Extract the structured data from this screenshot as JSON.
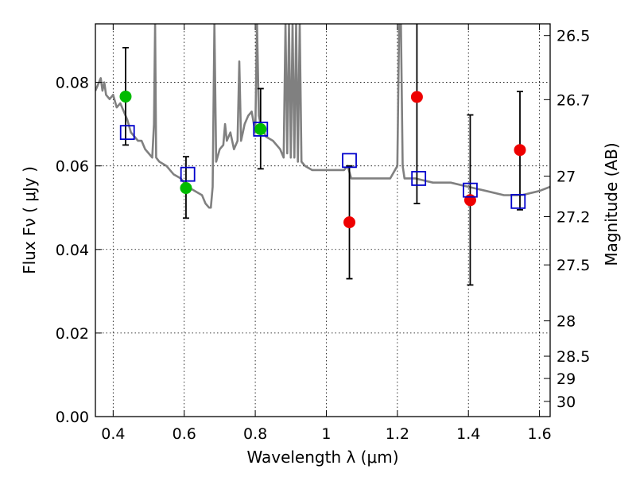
{
  "chart_data": {
    "type": "scatter",
    "xlabel": "Wavelength  λ (μm)",
    "ylabel": "Flux  Fν  ( μJy )",
    "ylabel_right": "Magnitude (AB)",
    "xlim": [
      0.35,
      1.63
    ],
    "ylim": [
      0.0,
      0.094
    ],
    "grid": true,
    "x_ticks": [
      {
        "value": 0.4,
        "label": "0.4"
      },
      {
        "value": 0.6,
        "label": "0.6"
      },
      {
        "value": 0.8,
        "label": "0.8"
      },
      {
        "value": 1.0,
        "label": "1"
      },
      {
        "value": 1.2,
        "label": "1.2"
      },
      {
        "value": 1.4,
        "label": "1.4"
      },
      {
        "value": 1.6,
        "label": "1.6"
      }
    ],
    "y_ticks": [
      {
        "value": 0.0,
        "label": "0.00"
      },
      {
        "value": 0.02,
        "label": "0.02"
      },
      {
        "value": 0.04,
        "label": "0.04"
      },
      {
        "value": 0.06,
        "label": "0.06"
      },
      {
        "value": 0.08,
        "label": "0.08"
      }
    ],
    "right_ticks": [
      {
        "value": 26.5,
        "label": "26.5"
      },
      {
        "value": 26.7,
        "label": "26.7"
      },
      {
        "value": 27.0,
        "label": "27"
      },
      {
        "value": 27.2,
        "label": "27.2"
      },
      {
        "value": 27.5,
        "label": "27.5"
      },
      {
        "value": 28.0,
        "label": "28"
      },
      {
        "value": 28.5,
        "label": "28.5"
      },
      {
        "value": 29.0,
        "label": "29"
      },
      {
        "value": 30.0,
        "label": "30"
      }
    ],
    "series": [
      {
        "kind": "line",
        "color": "#808080",
        "x": [
          0.35,
          0.36,
          0.365,
          0.37,
          0.375,
          0.38,
          0.39,
          0.4,
          0.41,
          0.42,
          0.43,
          0.44,
          0.45,
          0.46,
          0.47,
          0.48,
          0.49,
          0.5,
          0.51,
          0.515,
          0.518,
          0.521,
          0.53,
          0.55,
          0.57,
          0.59,
          0.61,
          0.63,
          0.65,
          0.66,
          0.67,
          0.675,
          0.68,
          0.685,
          0.69,
          0.7,
          0.71,
          0.715,
          0.72,
          0.73,
          0.74,
          0.75,
          0.755,
          0.76,
          0.765,
          0.77,
          0.78,
          0.79,
          0.8,
          0.805,
          0.81,
          0.815,
          0.82,
          0.83,
          0.85,
          0.87,
          0.88,
          0.885,
          0.89,
          0.895,
          0.9,
          0.905,
          0.91,
          0.915,
          0.92,
          0.925,
          0.93,
          0.94,
          0.96,
          1.0,
          1.05,
          1.06,
          1.07,
          1.1,
          1.15,
          1.18,
          1.2,
          1.205,
          1.21,
          1.215,
          1.22,
          1.25,
          1.3,
          1.35,
          1.4,
          1.45,
          1.5,
          1.55,
          1.6,
          1.63
        ],
        "y": [
          0.078,
          0.08,
          0.081,
          0.078,
          0.08,
          0.077,
          0.076,
          0.077,
          0.074,
          0.075,
          0.073,
          0.071,
          0.068,
          0.067,
          0.066,
          0.066,
          0.064,
          0.063,
          0.062,
          0.07,
          0.094,
          0.062,
          0.061,
          0.06,
          0.058,
          0.057,
          0.055,
          0.054,
          0.053,
          0.051,
          0.05,
          0.05,
          0.055,
          0.094,
          0.061,
          0.064,
          0.065,
          0.07,
          0.066,
          0.068,
          0.064,
          0.066,
          0.085,
          0.066,
          0.068,
          0.07,
          0.072,
          0.073,
          0.068,
          0.094,
          0.072,
          0.07,
          0.069,
          0.067,
          0.066,
          0.064,
          0.062,
          0.094,
          0.063,
          0.094,
          0.062,
          0.094,
          0.062,
          0.094,
          0.061,
          0.094,
          0.061,
          0.06,
          0.059,
          0.059,
          0.059,
          0.06,
          0.057,
          0.057,
          0.057,
          0.057,
          0.06,
          0.094,
          0.094,
          0.06,
          0.057,
          0.057,
          0.056,
          0.056,
          0.055,
          0.054,
          0.053,
          0.053,
          0.054,
          0.055
        ]
      },
      {
        "kind": "errorbar",
        "color": "#000000",
        "x": [
          0.435,
          0.605,
          0.815,
          1.065,
          1.255,
          1.405,
          1.545
        ],
        "y_low": [
          0.065,
          0.0475,
          0.0593,
          0.033,
          0.051,
          0.0315,
          0.0495
        ],
        "y_high": [
          0.0883,
          0.0622,
          0.0785,
          0.06,
          0.094,
          0.0722,
          0.0778
        ]
      },
      {
        "kind": "points",
        "marker": "circle",
        "color": "#00bb00",
        "x": [
          0.435,
          0.605,
          0.815
        ],
        "y": [
          0.0766,
          0.0547,
          0.0688
        ]
      },
      {
        "kind": "points",
        "marker": "circle",
        "color": "#ee0000",
        "x": [
          1.065,
          1.255,
          1.405,
          1.545
        ],
        "y": [
          0.0465,
          0.0765,
          0.0518,
          0.0638
        ]
      },
      {
        "kind": "points",
        "marker": "open-square",
        "color": "#0000cc",
        "x": [
          0.44,
          0.61,
          0.815,
          1.065,
          1.26,
          1.405,
          1.54
        ],
        "y": [
          0.068,
          0.058,
          0.0688,
          0.0613,
          0.057,
          0.0542,
          0.0515
        ]
      }
    ]
  }
}
